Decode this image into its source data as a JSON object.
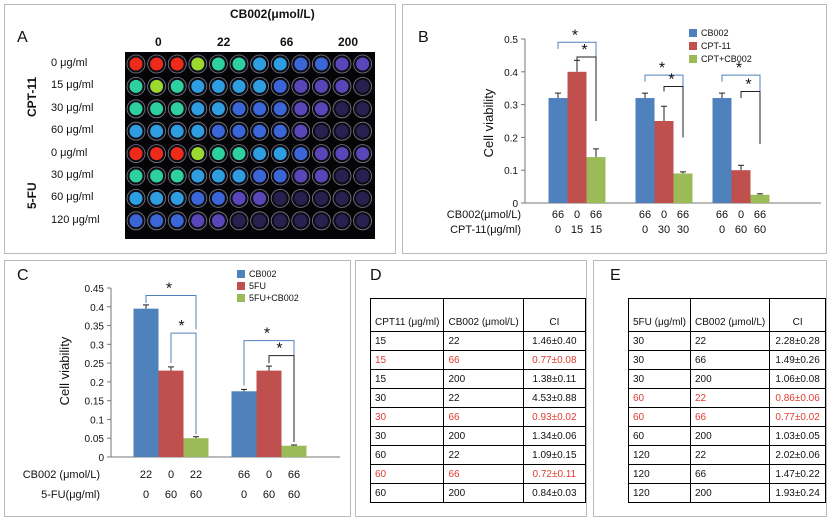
{
  "panels": {
    "A": "A",
    "B": "B",
    "C": "C",
    "D": "D",
    "E": "E"
  },
  "colors": {
    "cb002": "#4f81bd",
    "drug": "#c0504d",
    "combo": "#9bbb59",
    "highlight": "#e03c31"
  },
  "panel_a": {
    "title": "CB002(μmol/L)",
    "conc_labels": [
      "0",
      "22",
      "66",
      "200"
    ],
    "group_labels": [
      "CPT-11",
      "5-FU"
    ],
    "row_labels": [
      "0 μg/ml",
      "15 μg/ml",
      "30 μg/ml",
      "60 μg/ml",
      "0 μg/ml",
      "30 μg/ml",
      "60 μg/ml",
      "120 μg/ml"
    ]
  },
  "chart_data": [
    {
      "panel": "B",
      "type": "bar",
      "ylabel": "Cell viability",
      "ylim": [
        0,
        0.5
      ],
      "yticks": [
        "0",
        "0.1",
        "0.2",
        "0.3",
        "0.4",
        "0.5"
      ],
      "series": [
        {
          "name": "CB002",
          "values": [
            0.32,
            0.32,
            0.32
          ],
          "errors": [
            0.015,
            0.015,
            0.015
          ]
        },
        {
          "name": "CPT-11",
          "values": [
            0.4,
            0.25,
            0.1
          ],
          "errors": [
            0.035,
            0.045,
            0.015
          ]
        },
        {
          "name": "CPT+CB002",
          "values": [
            0.14,
            0.09,
            0.025
          ],
          "errors": [
            0.025,
            0.005,
            0.003
          ]
        }
      ],
      "row_titles": [
        "CB002(μmol/L)",
        "CPT-11(μg/ml)"
      ],
      "rows": [
        [
          "66",
          "0",
          "66",
          "66",
          "0",
          "66",
          "66",
          "0",
          "66"
        ],
        [
          "0",
          "15",
          "15",
          "0",
          "30",
          "30",
          "0",
          "60",
          "60"
        ]
      ],
      "legend": "top-right",
      "sig_marks": [
        "*",
        "*",
        "*",
        "*",
        "*",
        "*"
      ]
    },
    {
      "panel": "C",
      "type": "bar",
      "ylabel": "Cell viability",
      "ylim": [
        0,
        0.45
      ],
      "yticks": [
        "0",
        "0.05",
        "0.1",
        "0.15",
        "0.2",
        "0.25",
        "0.3",
        "0.35",
        "0.4",
        "0.45"
      ],
      "series": [
        {
          "name": "CB002",
          "values": [
            0.395,
            0.175
          ],
          "errors": [
            0.01,
            0.005
          ]
        },
        {
          "name": "5FU",
          "values": [
            0.23,
            0.23
          ],
          "errors": [
            0.01,
            0.012
          ]
        },
        {
          "name": "5FU+CB002",
          "values": [
            0.05,
            0.03
          ],
          "errors": [
            0.004,
            0.002
          ]
        }
      ],
      "row_titles": [
        "CB002 (μmol/L)",
        "5-FU(μg/ml)"
      ],
      "rows": [
        [
          "22",
          "0",
          "22",
          "66",
          "0",
          "66"
        ],
        [
          "0",
          "60",
          "60",
          "0",
          "60",
          "60"
        ]
      ],
      "legend": "top-right",
      "sig_marks": [
        "*",
        "*",
        "*",
        "*"
      ]
    }
  ],
  "table_d": {
    "headers": [
      "CPT11 (μg/ml)",
      "CB002 (μmol/L)",
      "CI"
    ],
    "rows": [
      {
        "c1": "15",
        "c2": "22",
        "ci": "1.46±0.40",
        "hi": false
      },
      {
        "c1": "15",
        "c2": "66",
        "ci": "0.77±0.08",
        "hi": true
      },
      {
        "c1": "15",
        "c2": "200",
        "ci": "1.38±0.11",
        "hi": false
      },
      {
        "c1": "30",
        "c2": "22",
        "ci": "4.53±0.88",
        "hi": false
      },
      {
        "c1": "30",
        "c2": "66",
        "ci": "0.93±0.02",
        "hi": true
      },
      {
        "c1": "30",
        "c2": "200",
        "ci": "1.34±0.06",
        "hi": false
      },
      {
        "c1": "60",
        "c2": "22",
        "ci": "1.09±0.15",
        "hi": false
      },
      {
        "c1": "60",
        "c2": "66",
        "ci": "0.72±0.11",
        "hi": true
      },
      {
        "c1": "60",
        "c2": "200",
        "ci": "0.84±0.03",
        "hi": false
      }
    ]
  },
  "table_e": {
    "headers": [
      "5FU (μg/ml)",
      "CB002 (μmol/L)",
      "CI"
    ],
    "rows": [
      {
        "c1": "30",
        "c2": "22",
        "ci": "2.28±0.28",
        "hi": false
      },
      {
        "c1": "30",
        "c2": "66",
        "ci": "1.49±0.26",
        "hi": false
      },
      {
        "c1": "30",
        "c2": "200",
        "ci": "1.06±0.08",
        "hi": false
      },
      {
        "c1": "60",
        "c2": "22",
        "ci": "0.86±0.06",
        "hi": true
      },
      {
        "c1": "60",
        "c2": "66",
        "ci": "0.77±0.02",
        "hi": true
      },
      {
        "c1": "60",
        "c2": "200",
        "ci": "1.03±0.05",
        "hi": false
      },
      {
        "c1": "120",
        "c2": "22",
        "ci": "2.02±0.06",
        "hi": false
      },
      {
        "c1": "120",
        "c2": "66",
        "ci": "1.47±0.22",
        "hi": false
      },
      {
        "c1": "120",
        "c2": "200",
        "ci": "1.93±0.24",
        "hi": false
      }
    ]
  }
}
